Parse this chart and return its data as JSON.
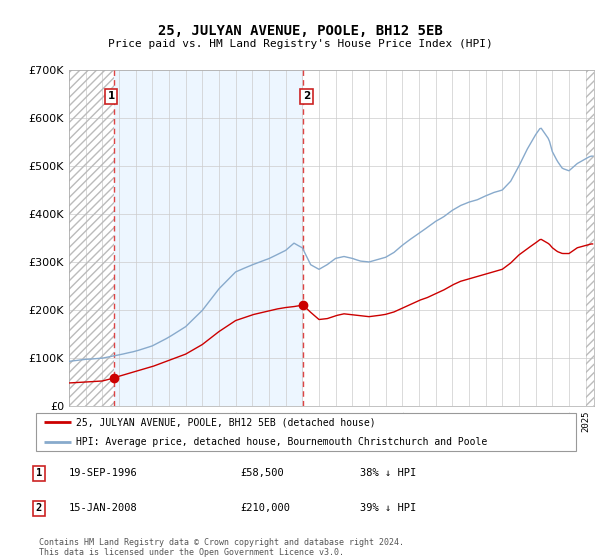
{
  "title": "25, JULYAN AVENUE, POOLE, BH12 5EB",
  "subtitle": "Price paid vs. HM Land Registry's House Price Index (HPI)",
  "legend_line1": "25, JULYAN AVENUE, POOLE, BH12 5EB (detached house)",
  "legend_line2": "HPI: Average price, detached house, Bournemouth Christchurch and Poole",
  "footer": "Contains HM Land Registry data © Crown copyright and database right 2024.\nThis data is licensed under the Open Government Licence v3.0.",
  "annotation1_date": "19-SEP-1996",
  "annotation1_price": "£58,500",
  "annotation1_hpi": "38% ↓ HPI",
  "annotation2_date": "15-JAN-2008",
  "annotation2_price": "£210,000",
  "annotation2_hpi": "39% ↓ HPI",
  "red_line_color": "#cc0000",
  "blue_line_color": "#88aacc",
  "dashed_line_color": "#dd4444",
  "ylim": [
    0,
    700000
  ],
  "yticks": [
    0,
    100000,
    200000,
    300000,
    400000,
    500000,
    600000,
    700000
  ],
  "transaction1_x": 1996.72,
  "transaction1_y": 58500,
  "transaction2_x": 2008.04,
  "transaction2_y": 210000,
  "xmin": 1994.0,
  "xmax": 2025.5
}
